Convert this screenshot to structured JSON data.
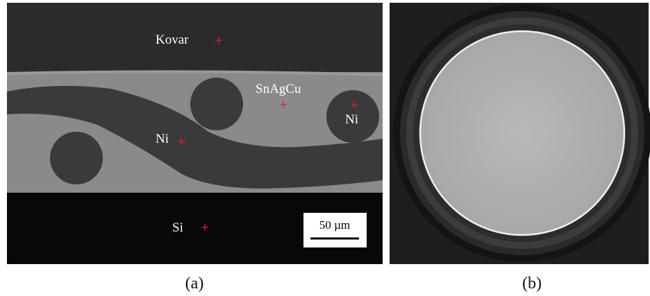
{
  "panels": [
    {
      "label": "(a)",
      "annotations": [
        "Kovar",
        "SnAgCu",
        "Ni",
        "Ni",
        "Si"
      ],
      "scale_bar": "50 µm"
    },
    {
      "label": "(b)"
    }
  ]
}
